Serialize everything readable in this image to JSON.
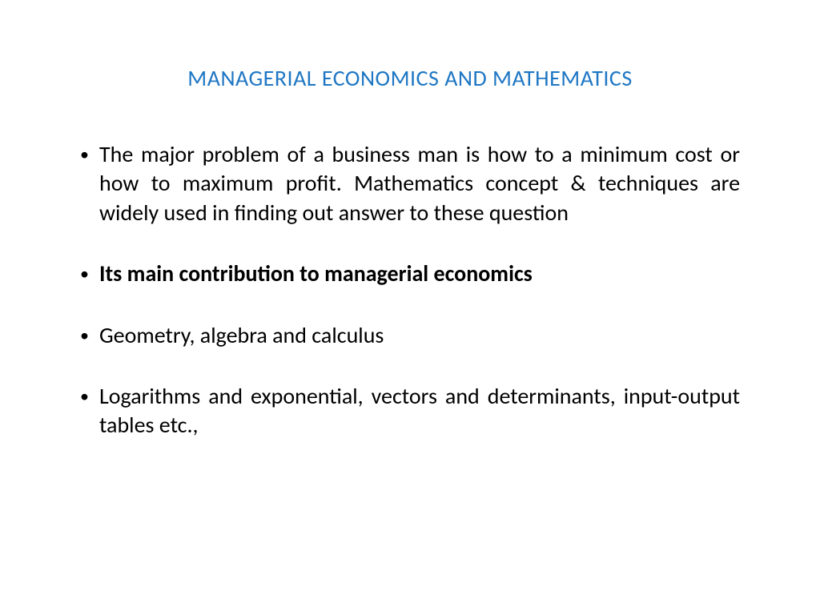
{
  "slide": {
    "title": "MANAGERIAL ECONOMICS AND MATHEMATICS",
    "title_color": "#1f77c4",
    "title_fontsize": 28,
    "background_color": "#ffffff",
    "body_color": "#000000",
    "body_fontsize": 28,
    "bullets": [
      {
        "text": "The major problem of a business man is how to a minimum cost or how to maximum profit. Mathematics concept & techniques are widely used in finding out answer to these question",
        "bold": false,
        "justify": true
      },
      {
        "text": "Its main contribution to managerial economics",
        "bold": true,
        "justify": false
      },
      {
        "text": "Geometry, algebra and calculus",
        "bold": false,
        "justify": false
      },
      {
        "text": "Logarithms and exponential, vectors and determinants, input-output tables etc.,",
        "bold": false,
        "justify": true
      }
    ]
  }
}
